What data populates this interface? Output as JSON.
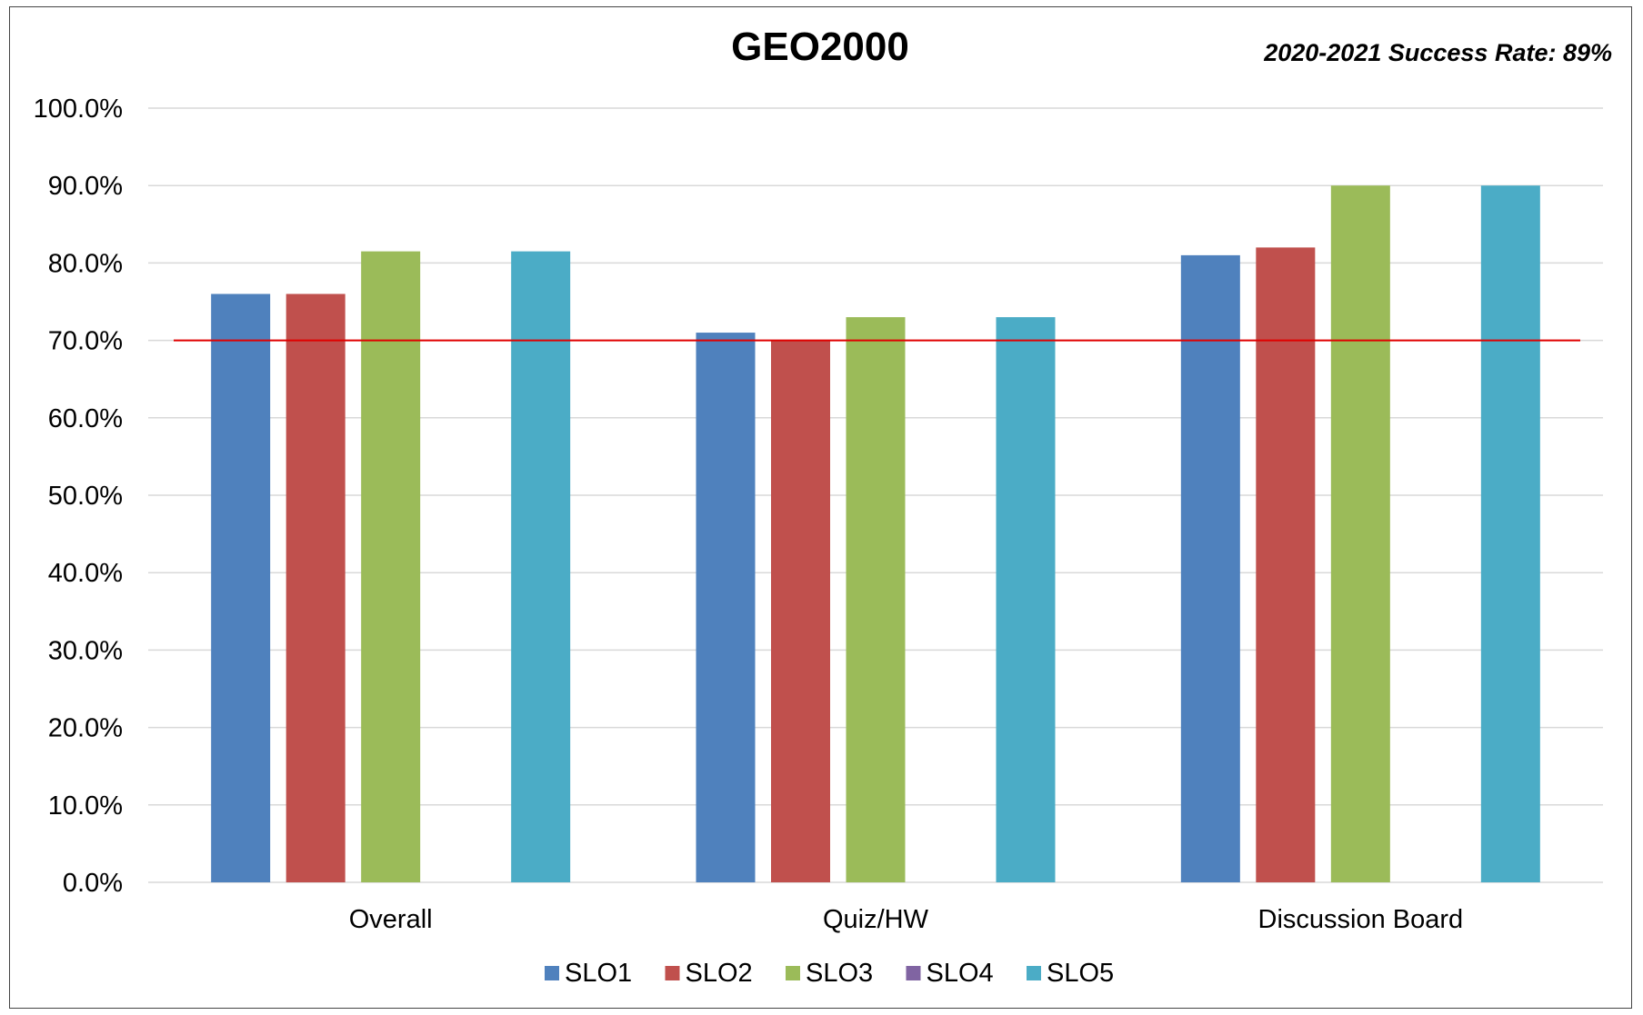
{
  "chart_data": {
    "type": "bar",
    "title": "GEO2000",
    "subtitle": "2020-2021 Success Rate: 89%",
    "categories": [
      "Overall",
      "Quiz/HW",
      "Discussion Board"
    ],
    "series": [
      {
        "name": "SLO1",
        "color": "#4f81bd",
        "values": [
          76,
          71,
          81
        ]
      },
      {
        "name": "SLO2",
        "color": "#c0504d",
        "values": [
          76,
          70,
          82
        ]
      },
      {
        "name": "SLO3",
        "color": "#9bbb59",
        "values": [
          81.5,
          73,
          90
        ]
      },
      {
        "name": "SLO4",
        "color": "#8064a2",
        "values": [
          null,
          null,
          null
        ]
      },
      {
        "name": "SLO5",
        "color": "#4bacc6",
        "values": [
          81.5,
          73,
          90
        ]
      }
    ],
    "ylim": [
      0,
      100
    ],
    "yticks": [
      0,
      10,
      20,
      30,
      40,
      50,
      60,
      70,
      80,
      90,
      100
    ],
    "ytick_labels": [
      "0.0%",
      "10.0%",
      "20.0%",
      "30.0%",
      "40.0%",
      "50.0%",
      "60.0%",
      "70.0%",
      "80.0%",
      "90.0%",
      "100.0%"
    ],
    "reference_line": {
      "value": 70,
      "color": "#e00000"
    },
    "grid": true,
    "legend": "bottom"
  }
}
